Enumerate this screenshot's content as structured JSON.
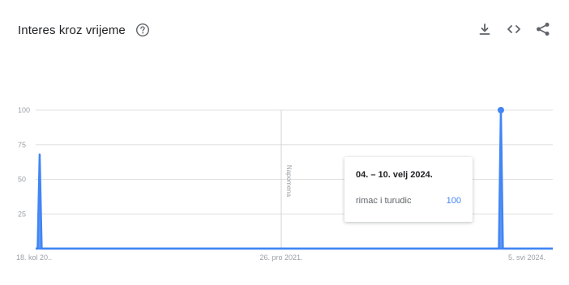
{
  "header": {
    "title": "Interes kroz vrijeme",
    "help_icon": "help-circle-icon",
    "actions": [
      {
        "name": "download-button",
        "icon": "download-icon"
      },
      {
        "name": "embed-button",
        "icon": "embed-code-icon"
      },
      {
        "name": "share-button",
        "icon": "share-icon"
      }
    ]
  },
  "colors": {
    "series": "#4285f4",
    "grid": "#e0e0e0",
    "axis": "#dadce0",
    "tick_text": "#9aa0a6",
    "title": "#202124"
  },
  "note_label": "Napomena",
  "tooltip": {
    "date": "04. – 10. velj 2024.",
    "series": "rimac i turudic",
    "value": "100"
  },
  "chart_data": {
    "type": "line",
    "x_start": "2019-08-18",
    "x_end": "2024-08-04",
    "x_tick_labels": [
      "18. kol 20..",
      "26. pro 2021.",
      "5. svi 2024."
    ],
    "x_tick_dates": [
      "2019-08-18",
      "2021-12-26",
      "2024-05-05"
    ],
    "ylim": [
      0,
      100
    ],
    "y_ticks": [
      0,
      25,
      50,
      75,
      100
    ],
    "y_tick_labels": [
      "",
      "25",
      "50",
      "75",
      "100"
    ],
    "note_date": "2021-12-26",
    "highlight_date": "2024-02-04",
    "series": [
      {
        "name": "rimac i turudic",
        "points": [
          {
            "date": "2019-08-18",
            "value": 0
          },
          {
            "date": "2019-08-25",
            "value": 0
          },
          {
            "date": "2019-09-01",
            "value": 68
          },
          {
            "date": "2019-09-08",
            "value": 0
          },
          {
            "date": "2024-01-28",
            "value": 0
          },
          {
            "date": "2024-02-04",
            "value": 100
          },
          {
            "date": "2024-02-11",
            "value": 0
          },
          {
            "date": "2024-08-04",
            "value": 0
          }
        ]
      }
    ]
  }
}
